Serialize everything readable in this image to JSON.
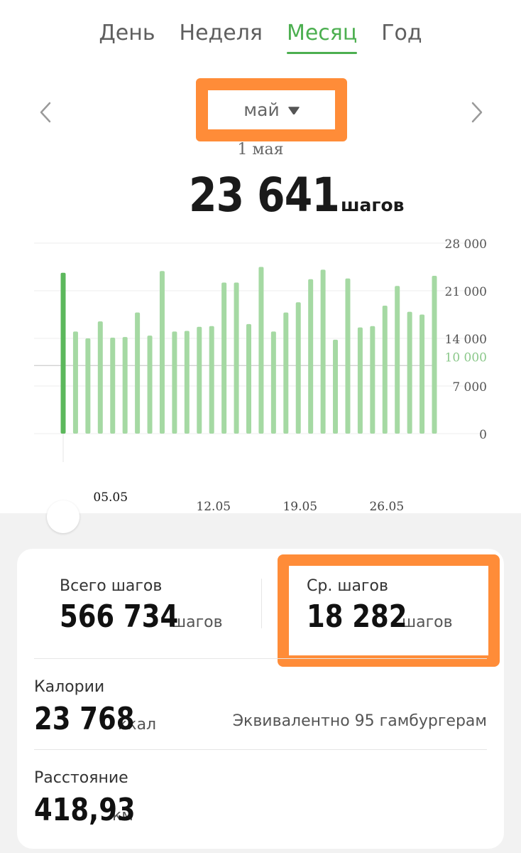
{
  "tabs": [
    {
      "label": "День",
      "active": false
    },
    {
      "label": "Неделя",
      "active": false
    },
    {
      "label": "Месяц",
      "active": true
    },
    {
      "label": "Год",
      "active": false
    }
  ],
  "header": {
    "month": "май",
    "selected_date": "1 мая",
    "selected_steps": "23 641",
    "steps_unit": "шагов"
  },
  "colors": {
    "accent": "#4caf50",
    "bar": "#a5d9a3",
    "bar_selected": "#5cb85c",
    "goal_label": "#8bc88a",
    "highlight": "#ff8c38"
  },
  "chart_data": {
    "type": "bar",
    "x": [
      "1",
      "2",
      "3",
      "4",
      "5",
      "6",
      "7",
      "8",
      "9",
      "10",
      "11",
      "12",
      "13",
      "14",
      "15",
      "16",
      "17",
      "18",
      "19",
      "20",
      "21",
      "22",
      "23",
      "24",
      "25",
      "26",
      "27",
      "28",
      "29",
      "30",
      "31"
    ],
    "values": [
      23641,
      15000,
      14000,
      16500,
      14100,
      14200,
      17800,
      14400,
      23900,
      15000,
      15100,
      15700,
      15800,
      22200,
      22200,
      16100,
      24500,
      15000,
      17800,
      19300,
      22700,
      24100,
      13800,
      22800,
      15600,
      15800,
      18800,
      21700,
      17900,
      17500,
      23200
    ],
    "selected_index": 0,
    "ylim": [
      0,
      28000
    ],
    "yticks": [
      "28 000",
      "21 000",
      "14 000",
      "7 000",
      "0"
    ],
    "ytick_values": [
      28000,
      21000,
      14000,
      7000,
      0
    ],
    "goal_value": 10000,
    "goal_label": "10 000",
    "xtick_labels": [
      {
        "index": 4,
        "label": "05.05"
      },
      {
        "index": 11,
        "label": "12.05"
      },
      {
        "index": 18,
        "label": "19.05"
      },
      {
        "index": 25,
        "label": "26.05"
      }
    ],
    "grid": true
  },
  "summary": {
    "total_label": "Всего шагов",
    "total_value": "566 734",
    "total_unit": "шагов",
    "avg_label": "Ср. шагов",
    "avg_value": "18 282",
    "avg_unit": "шагов",
    "calories_label": "Калории",
    "calories_value": "23 768",
    "calories_unit": "ккал",
    "calories_equiv": "Эквивалентно 95 гамбургерам",
    "distance_label": "Расстояние",
    "distance_value": "418,93",
    "distance_unit": "км"
  }
}
